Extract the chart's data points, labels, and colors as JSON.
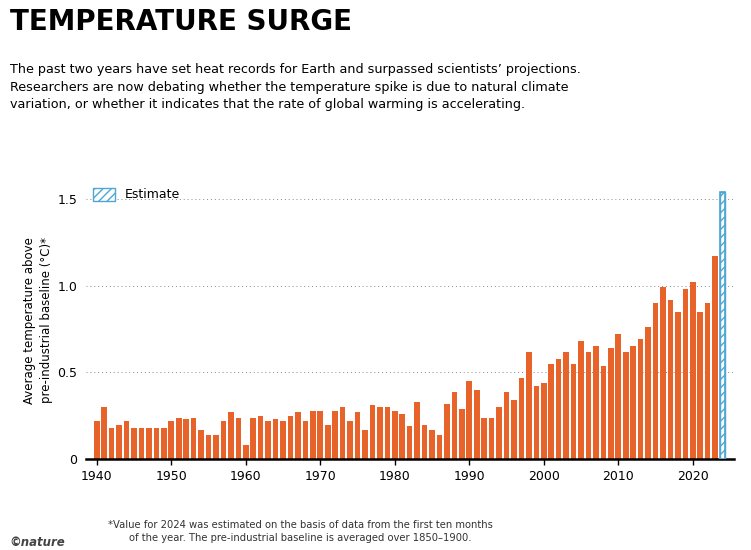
{
  "title": "TEMPERATURE SURGE",
  "subtitle": "The past two years have set heat records for Earth and surpassed scientists’ projections.\nResearchers are now debating whether the temperature spike is due to natural climate\nvariation, or whether it indicates that the rate of global warming is accelerating.",
  "ylabel": "Average temperature above\npre-industrial baseline (°C)*",
  "footnote": "*Value for 2024 was estimated on the basis of data from the first ten months\nof the year. The pre-industrial baseline is averaged over 1850–1900.",
  "nature_credit": "©nature",
  "legend_label": "Estimate",
  "years": [
    1940,
    1941,
    1942,
    1943,
    1944,
    1945,
    1946,
    1947,
    1948,
    1949,
    1950,
    1951,
    1952,
    1953,
    1954,
    1955,
    1956,
    1957,
    1958,
    1959,
    1960,
    1961,
    1962,
    1963,
    1964,
    1965,
    1966,
    1967,
    1968,
    1969,
    1970,
    1971,
    1972,
    1973,
    1974,
    1975,
    1976,
    1977,
    1978,
    1979,
    1980,
    1981,
    1982,
    1983,
    1984,
    1985,
    1986,
    1987,
    1988,
    1989,
    1990,
    1991,
    1992,
    1993,
    1994,
    1995,
    1996,
    1997,
    1998,
    1999,
    2000,
    2001,
    2002,
    2003,
    2004,
    2005,
    2006,
    2007,
    2008,
    2009,
    2010,
    2011,
    2012,
    2013,
    2014,
    2015,
    2016,
    2017,
    2018,
    2019,
    2020,
    2021,
    2022,
    2023,
    2024
  ],
  "values": [
    0.22,
    0.3,
    0.18,
    0.2,
    0.22,
    0.18,
    0.18,
    0.18,
    0.18,
    0.18,
    0.22,
    0.24,
    0.23,
    0.24,
    0.17,
    0.14,
    0.14,
    0.22,
    0.27,
    0.24,
    0.08,
    0.24,
    0.25,
    0.22,
    0.23,
    0.22,
    0.25,
    0.27,
    0.22,
    0.28,
    0.28,
    0.2,
    0.28,
    0.3,
    0.22,
    0.27,
    0.17,
    0.31,
    0.3,
    0.3,
    0.28,
    0.26,
    0.19,
    0.33,
    0.2,
    0.17,
    0.14,
    0.32,
    0.39,
    0.29,
    0.45,
    0.4,
    0.24,
    0.24,
    0.3,
    0.39,
    0.34,
    0.47,
    0.62,
    0.42,
    0.44,
    0.55,
    0.58,
    0.62,
    0.55,
    0.68,
    0.62,
    0.65,
    0.54,
    0.64,
    0.72,
    0.62,
    0.65,
    0.69,
    0.76,
    0.9,
    0.99,
    0.92,
    0.85,
    0.98,
    1.02,
    0.85,
    0.9,
    1.17,
    1.54
  ],
  "bar_color": "#E8632A",
  "estimate_bar_color": "#4da6d4",
  "estimate_hatch_color": "#4da6d4",
  "estimate_year": 2024,
  "ylim": [
    0,
    1.6
  ],
  "yticks": [
    0,
    0.5,
    1.0,
    1.5
  ],
  "xticks": [
    1940,
    1950,
    1960,
    1970,
    1980,
    1990,
    2000,
    2010,
    2020
  ],
  "background_color": "#ffffff",
  "grid_color": "#888888",
  "title_fontsize": 20,
  "subtitle_fontsize": 9.2,
  "ylabel_fontsize": 8.5,
  "tick_fontsize": 9,
  "footnote_fontsize": 7.2
}
